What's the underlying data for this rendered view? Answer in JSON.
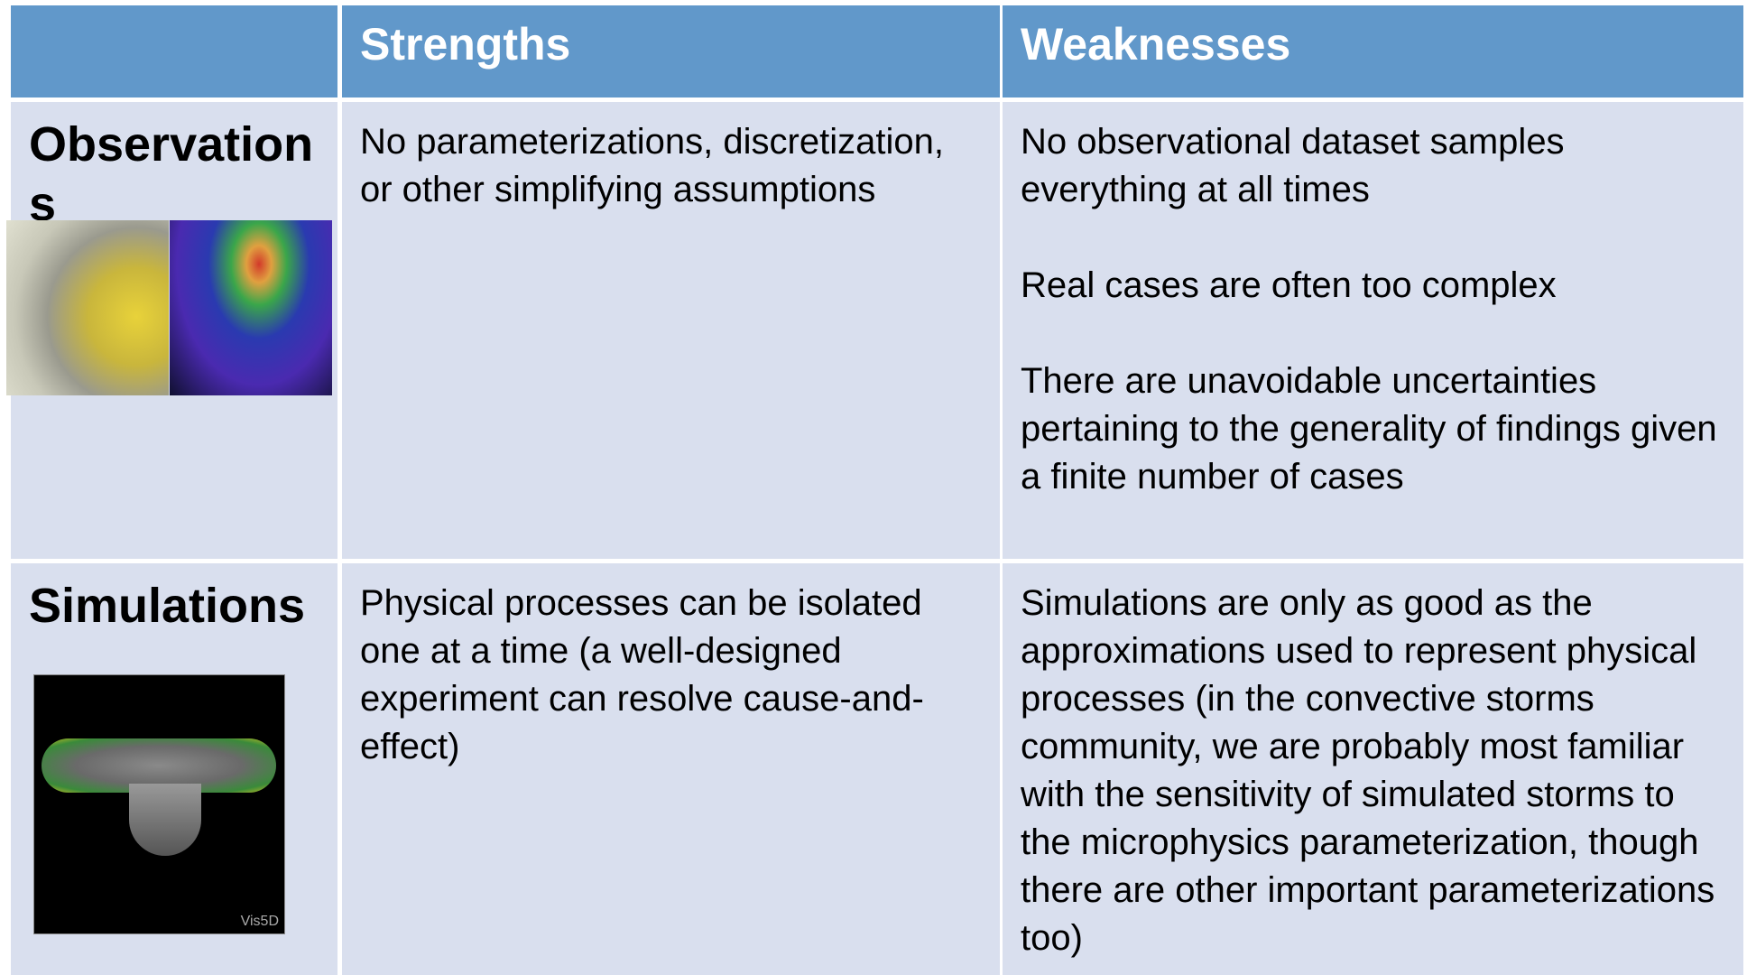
{
  "table": {
    "columns": [
      "Strengths",
      "Weaknesses"
    ],
    "rows": [
      {
        "label": "Observations",
        "strengths": [
          "No parameterizations, discretization, or other simplifying assumptions"
        ],
        "weaknesses": [
          "No observational dataset samples everything at all times",
          "Real cases are often too complex",
          "There are unavoidable uncertainties pertaining to the generality of findings given a finite number of cases"
        ]
      },
      {
        "label": "Simulations",
        "image_label": "Vis5D",
        "strengths": [
          "Physical processes can be isolated one at a time (a well-designed experiment can resolve cause-and-effect)"
        ],
        "weaknesses": [
          "Simulations are only as good as the approximations used to represent physical processes (in the convective storms community, we are probably most familiar with the sensitivity of simulated storms to the microphysics parameterization, though there are other important parameterizations too)"
        ]
      }
    ]
  }
}
